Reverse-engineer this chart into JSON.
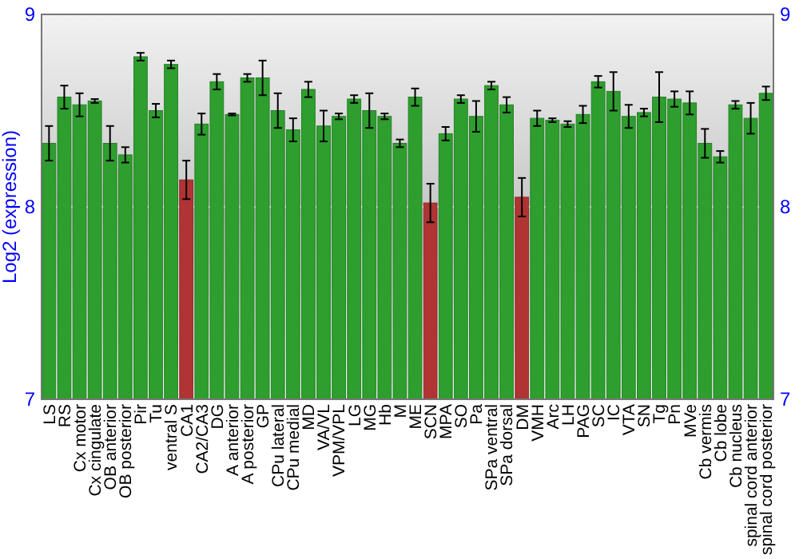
{
  "chart_data": {
    "type": "bar",
    "ylabel": "Log2 (expression)",
    "categories": [
      "LS",
      "RS",
      "Cx motor",
      "Cx cingulate",
      "OB anterior",
      "OB posterior",
      "Pir",
      "Tu",
      "ventral S",
      "CA1",
      "CA2/CA3",
      "DG",
      "A anterior",
      "A posterior",
      "GP",
      "CPu lateral",
      "CPu medial",
      "MD",
      "VA/VL",
      "VPM/VPL",
      "LG",
      "MG",
      "Hb",
      "M",
      "ME",
      "SCN",
      "MPA",
      "SO",
      "Pa",
      "SPa ventral",
      "SPa dorsal",
      "DM",
      "VMH",
      "Arc",
      "LH",
      "PAG",
      "SC",
      "IC",
      "VTA",
      "SN",
      "Tg",
      "Pn",
      "MVe",
      "Cb vermis",
      "Cb lobe",
      "Cb nucleus",
      "spinal cord anterior",
      "spinal cord posterior"
    ],
    "values": [
      8.33,
      8.57,
      8.53,
      8.55,
      8.33,
      8.27,
      8.78,
      8.5,
      8.74,
      8.14,
      8.43,
      8.65,
      8.48,
      8.67,
      8.67,
      8.5,
      8.4,
      8.61,
      8.42,
      8.47,
      8.56,
      8.5,
      8.47,
      8.33,
      8.57,
      8.02,
      8.38,
      8.56,
      8.47,
      8.63,
      8.53,
      8.05,
      8.46,
      8.45,
      8.43,
      8.48,
      8.65,
      8.6,
      8.47,
      8.49,
      8.57,
      8.56,
      8.54,
      8.33,
      8.26,
      8.53,
      8.46,
      8.59
    ],
    "errors": [
      0.09,
      0.06,
      0.06,
      0.01,
      0.09,
      0.04,
      0.02,
      0.035,
      0.02,
      0.1,
      0.055,
      0.04,
      0.005,
      0.02,
      0.09,
      0.09,
      0.06,
      0.04,
      0.08,
      0.015,
      0.02,
      0.09,
      0.015,
      0.02,
      0.045,
      0.1,
      0.035,
      0.02,
      0.08,
      0.02,
      0.04,
      0.1,
      0.04,
      0.01,
      0.015,
      0.045,
      0.03,
      0.1,
      0.06,
      0.02,
      0.13,
      0.04,
      0.06,
      0.075,
      0.03,
      0.02,
      0.08,
      0.035
    ],
    "colors": [
      "#2e9e2e",
      "#2e9e2e",
      "#2e9e2e",
      "#2e9e2e",
      "#2e9e2e",
      "#2e9e2e",
      "#2e9e2e",
      "#2e9e2e",
      "#2e9e2e",
      "#b03434",
      "#2e9e2e",
      "#2e9e2e",
      "#2e9e2e",
      "#2e9e2e",
      "#2e9e2e",
      "#2e9e2e",
      "#2e9e2e",
      "#2e9e2e",
      "#2e9e2e",
      "#2e9e2e",
      "#2e9e2e",
      "#2e9e2e",
      "#2e9e2e",
      "#2e9e2e",
      "#2e9e2e",
      "#b03434",
      "#2e9e2e",
      "#2e9e2e",
      "#2e9e2e",
      "#2e9e2e",
      "#2e9e2e",
      "#b03434",
      "#2e9e2e",
      "#2e9e2e",
      "#2e9e2e",
      "#2e9e2e",
      "#2e9e2e",
      "#2e9e2e",
      "#2e9e2e",
      "#2e9e2e",
      "#2e9e2e",
      "#2e9e2e",
      "#2e9e2e",
      "#2e9e2e",
      "#2e9e2e",
      "#2e9e2e",
      "#2e9e2e",
      "#2e9e2e"
    ],
    "ylim": [
      7,
      9
    ],
    "yticks": [
      7,
      8,
      9
    ],
    "y2lim": [
      7,
      9
    ],
    "y2ticks": [
      7,
      8,
      9
    ],
    "grid": "y"
  }
}
